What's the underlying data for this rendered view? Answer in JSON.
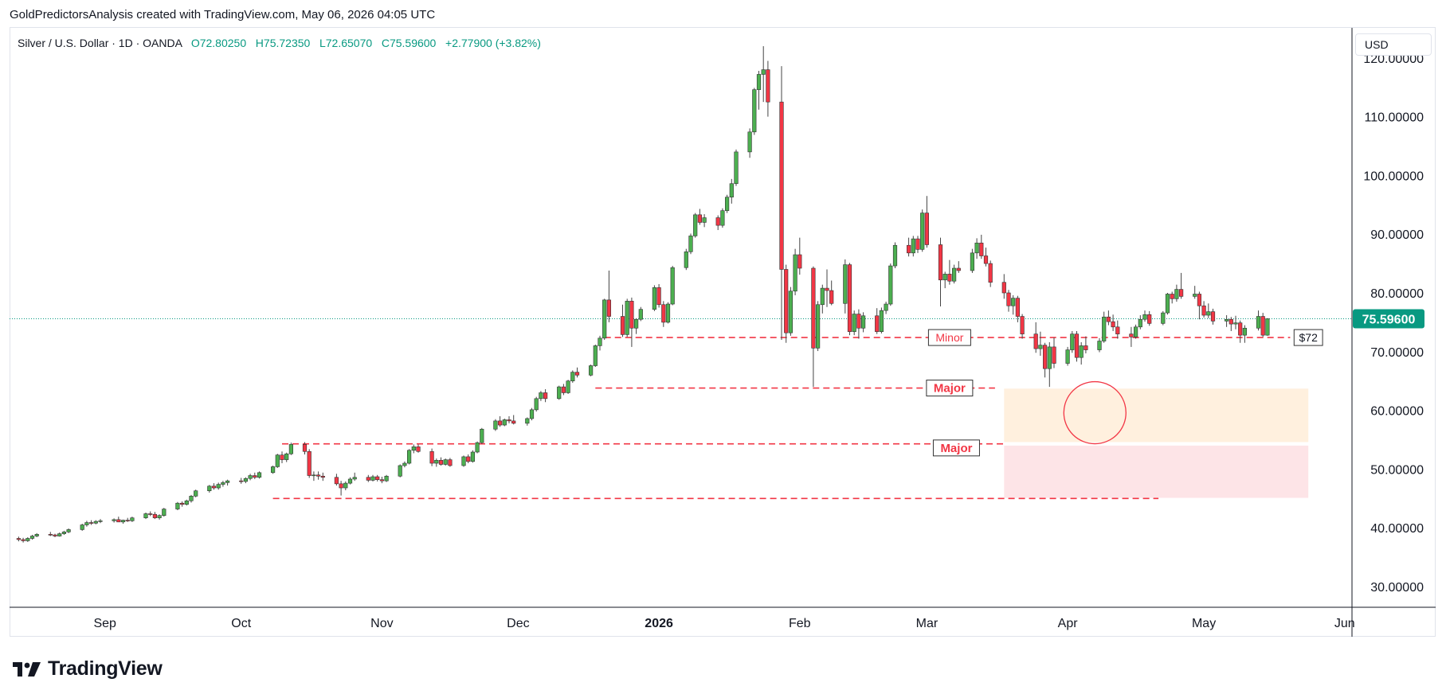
{
  "credit": "GoldPredictorsAnalysis created with TradingView.com, May 06, 2026 04:05 UTC",
  "legend": {
    "symbol": "Silver / U.S. Dollar · 1D · OANDA",
    "open": "O72.80250",
    "high": "H75.72350",
    "low": "L72.65070",
    "close": "C75.59600",
    "change": "+2.77900 (+3.82%)"
  },
  "currency": "USD",
  "brand": "TradingView",
  "colors": {
    "up": "#089981",
    "down": "#f23645",
    "fill_up": "#4caf50",
    "fill_down": "#f23645",
    "level": "#f23645"
  },
  "chart_data": {
    "type": "candlestick",
    "title": "Silver / U.S. Dollar · 1D · OANDA",
    "ylim": [
      25,
      122
    ],
    "y_ticks": [
      30,
      40,
      50,
      60,
      70,
      80,
      90,
      100,
      110,
      120
    ],
    "y_tick_labels": [
      "30.00000",
      "40.00000",
      "50.00000",
      "60.00000",
      "70.00000",
      "80.00000",
      "90.00000",
      "100.00000",
      "110.00000",
      "120.00000"
    ],
    "x_labels": [
      {
        "label": "Sep",
        "day": 21,
        "bold": false
      },
      {
        "label": "Oct",
        "day": 51,
        "bold": false
      },
      {
        "label": "Nov",
        "day": 82,
        "bold": false
      },
      {
        "label": "Dec",
        "day": 112,
        "bold": false
      },
      {
        "label": "2026",
        "day": 143,
        "bold": true
      },
      {
        "label": "Feb",
        "day": 174,
        "bold": false
      },
      {
        "label": "Mar",
        "day": 202,
        "bold": false
      },
      {
        "label": "Apr",
        "day": 233,
        "bold": false
      },
      {
        "label": "May",
        "day": 263,
        "bold": false
      },
      {
        "label": "Jun",
        "day": 294,
        "bold": false
      }
    ],
    "x_range_days": [
      0,
      315
    ],
    "last_price": 75.596,
    "last_price_label": "75.59600",
    "candles": [
      [
        2,
        38.2,
        38.5,
        37.7,
        38.0
      ],
      [
        3,
        38.0,
        38.3,
        37.5,
        37.8
      ],
      [
        4,
        37.8,
        38.4,
        37.6,
        38.2
      ],
      [
        5,
        38.2,
        38.8,
        38.0,
        38.6
      ],
      [
        6,
        38.6,
        39.1,
        38.4,
        38.9
      ],
      [
        9,
        38.9,
        39.3,
        38.6,
        38.8
      ],
      [
        10,
        38.8,
        39.0,
        38.4,
        38.6
      ],
      [
        11,
        38.6,
        39.2,
        38.5,
        39.0
      ],
      [
        12,
        39.0,
        39.5,
        38.8,
        39.3
      ],
      [
        13,
        39.3,
        39.9,
        39.1,
        39.7
      ],
      [
        16,
        39.7,
        40.7,
        39.5,
        40.5
      ],
      [
        17,
        40.5,
        41.2,
        40.2,
        40.9
      ],
      [
        18,
        40.9,
        41.3,
        40.5,
        40.8
      ],
      [
        19,
        40.8,
        41.3,
        40.6,
        41.1
      ],
      [
        20,
        41.1,
        41.5,
        40.8,
        41.2
      ],
      [
        23,
        41.2,
        41.6,
        40.9,
        41.4
      ],
      [
        24,
        41.4,
        41.9,
        41.0,
        41.0
      ],
      [
        25,
        41.0,
        41.4,
        40.7,
        41.3
      ],
      [
        26,
        41.3,
        41.7,
        41.0,
        41.2
      ],
      [
        27,
        41.2,
        41.9,
        41.0,
        41.7
      ],
      [
        30,
        41.7,
        42.6,
        41.5,
        42.4
      ],
      [
        31,
        42.4,
        42.8,
        42.0,
        42.3
      ],
      [
        32,
        42.3,
        42.7,
        41.5,
        41.7
      ],
      [
        33,
        41.7,
        42.3,
        41.4,
        42.1
      ],
      [
        34,
        42.1,
        43.4,
        41.9,
        43.2
      ],
      [
        37,
        43.2,
        44.4,
        43.0,
        44.2
      ],
      [
        38,
        44.2,
        44.5,
        43.6,
        44.0
      ],
      [
        39,
        44.0,
        44.8,
        43.8,
        44.6
      ],
      [
        40,
        44.6,
        45.6,
        44.3,
        45.4
      ],
      [
        41,
        45.4,
        46.5,
        45.2,
        46.3
      ],
      [
        44,
        46.3,
        47.3,
        46.0,
        47.1
      ],
      [
        45,
        47.1,
        47.6,
        46.5,
        46.8
      ],
      [
        46,
        46.8,
        47.7,
        46.5,
        47.4
      ],
      [
        47,
        47.4,
        48.0,
        47.0,
        47.7
      ],
      [
        48,
        47.7,
        48.2,
        47.2,
        48.0
      ],
      [
        51,
        48.0,
        48.5,
        47.5,
        47.9
      ],
      [
        52,
        47.9,
        48.6,
        47.6,
        48.4
      ],
      [
        53,
        48.4,
        49.2,
        48.1,
        48.9
      ],
      [
        54,
        48.9,
        49.4,
        48.3,
        48.6
      ],
      [
        55,
        48.6,
        49.6,
        48.4,
        49.4
      ],
      [
        58,
        49.4,
        50.6,
        49.2,
        50.4
      ],
      [
        59,
        50.4,
        52.6,
        50.2,
        52.4
      ],
      [
        60,
        52.4,
        53.0,
        51.0,
        51.6
      ],
      [
        61,
        51.6,
        52.8,
        51.2,
        52.6
      ],
      [
        62,
        52.6,
        54.5,
        52.4,
        54.2
      ],
      [
        65,
        54.2,
        54.6,
        52.5,
        53.0
      ],
      [
        66,
        53.0,
        53.4,
        48.5,
        48.9
      ],
      [
        67,
        48.9,
        49.6,
        48.0,
        49.0
      ],
      [
        68,
        49.0,
        49.6,
        48.2,
        48.8
      ],
      [
        69,
        48.8,
        49.4,
        48.0,
        48.6
      ],
      [
        72,
        48.6,
        49.2,
        47.2,
        47.5
      ],
      [
        73,
        47.5,
        48.0,
        45.5,
        46.8
      ],
      [
        74,
        46.8,
        47.9,
        46.4,
        47.6
      ],
      [
        75,
        47.6,
        48.6,
        47.4,
        48.3
      ],
      [
        76,
        48.3,
        49.4,
        48.0,
        48.6
      ],
      [
        79,
        48.6,
        49.0,
        47.8,
        48.1
      ],
      [
        80,
        48.1,
        49.0,
        47.9,
        48.7
      ],
      [
        81,
        48.7,
        49.0,
        47.9,
        48.2
      ],
      [
        82,
        48.2,
        48.7,
        47.6,
        48.0
      ],
      [
        83,
        48.0,
        49.0,
        47.8,
        48.8
      ],
      [
        86,
        48.8,
        50.8,
        48.6,
        50.6
      ],
      [
        87,
        50.6,
        51.3,
        50.3,
        51.0
      ],
      [
        88,
        51.0,
        53.4,
        50.8,
        53.2
      ],
      [
        89,
        53.2,
        54.2,
        52.7,
        53.8
      ],
      [
        90,
        53.8,
        54.2,
        52.8,
        53.0
      ],
      [
        93,
        53.0,
        53.5,
        50.5,
        51.0
      ],
      [
        94,
        51.0,
        51.8,
        50.4,
        51.5
      ],
      [
        95,
        51.5,
        52.0,
        50.6,
        50.8
      ],
      [
        96,
        50.8,
        51.8,
        50.6,
        51.6
      ],
      [
        97,
        51.6,
        51.9,
        50.4,
        50.6
      ],
      [
        100,
        50.6,
        52.3,
        50.4,
        52.1
      ],
      [
        101,
        52.1,
        52.5,
        51.0,
        51.3
      ],
      [
        102,
        51.3,
        53.2,
        51.1,
        52.9
      ],
      [
        103,
        52.9,
        54.7,
        52.7,
        54.5
      ],
      [
        104,
        54.5,
        57.0,
        54.3,
        56.8
      ],
      [
        107,
        56.8,
        58.5,
        56.5,
        58.2
      ],
      [
        108,
        58.2,
        59.0,
        57.2,
        57.5
      ],
      [
        109,
        57.5,
        58.6,
        57.3,
        58.4
      ],
      [
        110,
        58.4,
        59.0,
        57.8,
        58.2
      ],
      [
        111,
        58.2,
        59.2,
        57.6,
        57.8
      ],
      [
        114,
        57.8,
        58.8,
        57.4,
        58.6
      ],
      [
        115,
        58.6,
        60.4,
        58.3,
        60.1
      ],
      [
        116,
        60.1,
        62.3,
        59.8,
        62.0
      ],
      [
        117,
        62.0,
        63.3,
        61.6,
        63.0
      ],
      [
        118,
        63.0,
        63.6,
        61.4,
        62.0
      ],
      [
        121,
        62.0,
        64.2,
        61.8,
        64.0
      ],
      [
        122,
        64.0,
        64.5,
        62.6,
        63.0
      ],
      [
        123,
        63.0,
        65.2,
        62.8,
        65.0
      ],
      [
        124,
        65.0,
        66.8,
        64.7,
        66.5
      ],
      [
        125,
        66.5,
        67.3,
        65.6,
        66.0
      ],
      [
        128,
        66.0,
        67.8,
        65.8,
        67.6
      ],
      [
        129,
        67.6,
        71.2,
        67.4,
        71.0
      ],
      [
        130,
        71.0,
        72.7,
        70.2,
        72.3
      ],
      [
        131,
        72.3,
        79.0,
        72.0,
        78.8
      ],
      [
        132,
        78.8,
        83.8,
        75.0,
        76.0
      ],
      [
        135,
        76.0,
        78.0,
        72.5,
        72.9
      ],
      [
        136,
        72.9,
        79.0,
        72.5,
        78.6
      ],
      [
        137,
        78.6,
        79.2,
        70.8,
        74.0
      ],
      [
        138,
        74.0,
        75.7,
        73.0,
        75.5
      ],
      [
        139,
        75.5,
        77.6,
        75.2,
        77.2
      ],
      [
        142,
        77.2,
        81.3,
        76.9,
        80.9
      ],
      [
        143,
        80.9,
        81.5,
        77.5,
        78.0
      ],
      [
        144,
        78.0,
        78.6,
        74.2,
        75.0
      ],
      [
        145,
        75.0,
        78.4,
        74.8,
        78.1
      ],
      [
        146,
        78.1,
        84.6,
        77.9,
        84.3
      ],
      [
        149,
        84.3,
        87.5,
        83.9,
        87.0
      ],
      [
        150,
        87.0,
        90.1,
        86.6,
        89.7
      ],
      [
        151,
        89.7,
        93.6,
        89.4,
        93.3
      ],
      [
        152,
        93.3,
        94.3,
        91.6,
        92.0
      ],
      [
        153,
        92.0,
        93.4,
        91.2,
        92.8
      ],
      [
        156,
        92.8,
        93.2,
        90.7,
        91.5
      ],
      [
        157,
        91.5,
        94.4,
        91.1,
        94.0
      ],
      [
        158,
        94.0,
        96.7,
        93.6,
        96.3
      ],
      [
        159,
        96.3,
        99.4,
        95.2,
        98.6
      ],
      [
        160,
        98.6,
        104.4,
        98.2,
        104.0
      ],
      [
        163,
        104.0,
        108.0,
        103.0,
        107.4
      ],
      [
        164,
        107.4,
        114.9,
        106.9,
        114.6
      ],
      [
        165,
        114.6,
        117.8,
        111.2,
        117.2
      ],
      [
        166,
        117.2,
        122.0,
        112.5,
        118.0
      ],
      [
        167,
        118.0,
        119.5,
        110.0,
        112.5
      ],
      [
        170,
        112.5,
        118.6,
        72.0,
        84.0
      ],
      [
        171,
        84.0,
        84.8,
        71.5,
        73.2
      ],
      [
        172,
        73.2,
        81.0,
        72.7,
        80.3
      ],
      [
        173,
        80.3,
        87.5,
        79.6,
        86.5
      ],
      [
        174,
        86.5,
        89.4,
        83.1,
        84.2
      ],
      [
        177,
        84.2,
        84.5,
        64.0,
        70.6
      ],
      [
        178,
        70.6,
        78.6,
        70.1,
        78.0
      ],
      [
        179,
        78.0,
        81.4,
        76.5,
        80.8
      ],
      [
        180,
        80.8,
        84.0,
        77.6,
        80.4
      ],
      [
        181,
        80.4,
        82.1,
        77.9,
        78.2
      ],
      [
        184,
        78.2,
        85.7,
        76.5,
        84.8
      ],
      [
        185,
        84.8,
        85.1,
        72.8,
        73.4
      ],
      [
        186,
        73.4,
        77.0,
        72.8,
        76.4
      ],
      [
        187,
        76.4,
        77.2,
        72.2,
        74.0
      ],
      [
        188,
        74.0,
        76.7,
        73.3,
        76.1
      ],
      [
        191,
        76.1,
        77.4,
        73.0,
        73.4
      ],
      [
        192,
        73.4,
        77.5,
        73.1,
        77.0
      ],
      [
        193,
        77.0,
        78.5,
        76.4,
        78.1
      ],
      [
        194,
        78.1,
        85.0,
        77.8,
        84.6
      ],
      [
        195,
        84.6,
        88.6,
        84.2,
        88.1
      ],
      [
        198,
        88.1,
        89.4,
        86.2,
        86.8
      ],
      [
        199,
        86.8,
        89.7,
        86.2,
        89.2
      ],
      [
        200,
        89.2,
        89.7,
        86.8,
        87.4
      ],
      [
        201,
        87.4,
        94.2,
        87.0,
        93.6
      ],
      [
        202,
        93.6,
        96.5,
        87.7,
        88.2
      ],
      [
        205,
        88.2,
        89.4,
        77.7,
        82.2
      ],
      [
        206,
        82.2,
        83.6,
        80.8,
        83.2
      ],
      [
        207,
        83.2,
        85.6,
        81.4,
        82.0
      ],
      [
        208,
        82.0,
        84.8,
        81.6,
        84.2
      ],
      [
        209,
        84.2,
        85.4,
        83.4,
        83.8
      ],
      [
        212,
        83.8,
        87.5,
        83.4,
        86.8
      ],
      [
        213,
        86.8,
        89.3,
        85.8,
        88.5
      ],
      [
        214,
        88.5,
        89.9,
        85.8,
        86.3
      ],
      [
        215,
        86.3,
        87.7,
        84.5,
        85.0
      ],
      [
        216,
        85.0,
        85.5,
        81.0,
        81.8
      ],
      [
        219,
        81.8,
        83.2,
        79.0,
        80.0
      ],
      [
        220,
        80.0,
        80.5,
        76.8,
        77.8
      ],
      [
        221,
        77.8,
        79.6,
        76.3,
        79.1
      ],
      [
        222,
        79.1,
        79.5,
        75.0,
        76.0
      ],
      [
        223,
        76.0,
        76.4,
        72.2,
        73.0
      ],
      [
        226,
        73.0,
        75.0,
        69.8,
        70.5
      ],
      [
        227,
        70.5,
        73.4,
        69.3,
        71.1
      ],
      [
        228,
        71.1,
        71.5,
        65.6,
        67.1
      ],
      [
        229,
        67.1,
        71.6,
        64.0,
        70.8
      ],
      [
        230,
        70.8,
        72.4,
        67.2,
        68.0
      ],
      [
        233,
        68.0,
        70.8,
        67.6,
        70.3
      ],
      [
        234,
        70.3,
        73.5,
        69.8,
        73.0
      ],
      [
        235,
        73.0,
        73.5,
        68.3,
        69.0
      ],
      [
        236,
        69.0,
        71.6,
        67.8,
        71.0
      ],
      [
        237,
        71.0,
        72.6,
        69.7,
        70.3
      ],
      [
        240,
        70.3,
        72.3,
        69.9,
        71.8
      ],
      [
        241,
        71.8,
        76.8,
        71.5,
        75.9
      ],
      [
        242,
        75.9,
        77.0,
        74.5,
        75.1
      ],
      [
        243,
        75.1,
        76.3,
        73.5,
        74.2
      ],
      [
        244,
        74.2,
        75.3,
        72.2,
        73.0
      ],
      [
        247,
        73.0,
        74.2,
        70.8,
        72.5
      ],
      [
        248,
        72.5,
        74.6,
        72.2,
        74.2
      ],
      [
        249,
        74.2,
        76.2,
        73.8,
        75.5
      ],
      [
        250,
        75.5,
        77.0,
        75.1,
        76.3
      ],
      [
        251,
        76.3,
        76.9,
        74.4,
        74.8
      ],
      [
        254,
        74.8,
        76.9,
        74.5,
        76.6
      ],
      [
        255,
        76.6,
        80.0,
        76.3,
        79.8
      ],
      [
        256,
        79.8,
        80.2,
        78.2,
        79.0
      ],
      [
        257,
        79.0,
        81.4,
        78.5,
        80.6
      ],
      [
        258,
        80.6,
        83.4,
        79.0,
        79.4
      ],
      [
        261,
        79.4,
        81.2,
        79.0,
        79.8
      ],
      [
        262,
        79.8,
        80.2,
        75.5,
        77.8
      ],
      [
        263,
        77.8,
        78.6,
        75.8,
        76.2
      ],
      [
        264,
        76.2,
        78.2,
        75.7,
        76.8
      ],
      [
        265,
        76.8,
        77.3,
        74.6,
        75.2
      ],
      [
        268,
        75.2,
        76.2,
        74.2,
        75.5
      ],
      [
        269,
        75.5,
        75.9,
        73.5,
        74.7
      ],
      [
        270,
        74.7,
        76.1,
        73.8,
        74.9
      ],
      [
        271,
        74.9,
        75.3,
        71.5,
        72.8
      ],
      [
        272,
        72.8,
        74.5,
        71.5,
        74.0
      ],
      [
        275,
        74.0,
        77.0,
        73.6,
        76.0
      ],
      [
        276,
        76.0,
        76.6,
        72.5,
        72.8
      ],
      [
        277,
        72.8,
        75.7,
        72.7,
        75.6
      ]
    ],
    "level_lines": [
      {
        "y": 72.4,
        "day_from": 131,
        "day_to": 282
      },
      {
        "y": 63.8,
        "day_from": 129,
        "day_to": 217
      },
      {
        "y": 54.3,
        "day_from": 60,
        "day_to": 219
      },
      {
        "y": 45.0,
        "day_from": 58,
        "day_to": 253
      }
    ],
    "zones": [
      {
        "y_top": 63.7,
        "y_bottom": 54.6,
        "day_from": 219,
        "day_to": 286,
        "color": "#fff0de"
      },
      {
        "y_top": 54.0,
        "y_bottom": 45.1,
        "day_from": 219,
        "day_to": 286,
        "color": "#fde4e7"
      }
    ],
    "circle": {
      "day": 239,
      "price": 59.6
    },
    "labels": [
      {
        "text": "Minor",
        "day": 207,
        "y": 72.4,
        "bold": false
      },
      {
        "text": "Major",
        "day": 207,
        "y": 63.8,
        "bold": true
      },
      {
        "text": "Major",
        "day": 208.5,
        "y": 53.6,
        "bold": true
      },
      {
        "text": "$72",
        "day": 286,
        "y": 72.4,
        "bold": false
      }
    ]
  }
}
